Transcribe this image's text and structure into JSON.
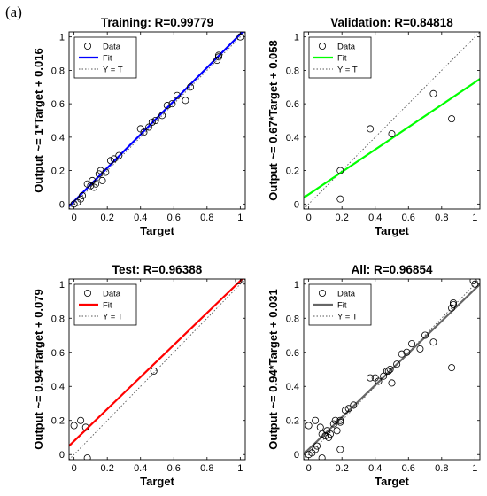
{
  "figure_label": "(a)",
  "chart_data": [
    {
      "type": "scatter",
      "title": "Training: R=0.99779",
      "xlabel": "Target",
      "ylabel": "Output ~= 1*Target + 0.016",
      "xlim": [
        -0.03,
        1.03
      ],
      "ylim": [
        -0.03,
        1.03
      ],
      "ticks": [
        0,
        0.2,
        0.4,
        0.6,
        0.8,
        1
      ],
      "tick_labels": [
        "0",
        "0.2",
        "0.4",
        "0.6",
        "0.8",
        "1"
      ],
      "fit": {
        "slope": 1.0,
        "intercept": 0.016
      },
      "fit_color": "#0000ff",
      "legend": {
        "data": "Data",
        "fit": "Fit",
        "ident": "Y = T"
      },
      "points": [
        [
          0.0,
          0.0
        ],
        [
          0.02,
          0.01
        ],
        [
          0.04,
          0.03
        ],
        [
          0.05,
          0.05
        ],
        [
          0.08,
          0.12
        ],
        [
          0.1,
          0.11
        ],
        [
          0.11,
          0.14
        ],
        [
          0.12,
          0.1
        ],
        [
          0.13,
          0.12
        ],
        [
          0.15,
          0.18
        ],
        [
          0.16,
          0.2
        ],
        [
          0.17,
          0.14
        ],
        [
          0.19,
          0.19
        ],
        [
          0.22,
          0.26
        ],
        [
          0.24,
          0.27
        ],
        [
          0.27,
          0.29
        ],
        [
          0.4,
          0.45
        ],
        [
          0.42,
          0.43
        ],
        [
          0.45,
          0.46
        ],
        [
          0.47,
          0.49
        ],
        [
          0.49,
          0.5
        ],
        [
          0.53,
          0.53
        ],
        [
          0.56,
          0.59
        ],
        [
          0.59,
          0.6
        ],
        [
          0.62,
          0.65
        ],
        [
          0.67,
          0.62
        ],
        [
          0.7,
          0.7
        ],
        [
          0.86,
          0.86
        ],
        [
          0.87,
          0.88
        ],
        [
          0.87,
          0.89
        ],
        [
          1.0,
          1.0
        ]
      ]
    },
    {
      "type": "scatter",
      "title": "Validation: R=0.84818",
      "xlabel": "Target",
      "ylabel": "Output ~= 0.67*Target + 0.058",
      "xlim": [
        -0.03,
        1.03
      ],
      "ylim": [
        -0.03,
        1.03
      ],
      "ticks": [
        0,
        0.2,
        0.4,
        0.6,
        0.8,
        1
      ],
      "tick_labels": [
        "0",
        "0.2",
        "0.4",
        "0.6",
        "0.8",
        "1"
      ],
      "fit": {
        "slope": 0.67,
        "intercept": 0.058
      },
      "fit_color": "#00ff00",
      "legend": {
        "data": "Data",
        "fit": "Fit",
        "ident": "Y = T"
      },
      "points": [
        [
          0.19,
          0.2
        ],
        [
          0.19,
          0.03
        ],
        [
          0.37,
          0.45
        ],
        [
          0.5,
          0.42
        ],
        [
          0.75,
          0.66
        ],
        [
          0.86,
          0.51
        ]
      ]
    },
    {
      "type": "scatter",
      "title": "Test: R=0.96388",
      "xlabel": "Target",
      "ylabel": "Output ~= 0.94*Target + 0.079",
      "xlim": [
        -0.03,
        1.03
      ],
      "ylim": [
        -0.03,
        1.03
      ],
      "ticks": [
        0,
        0.2,
        0.4,
        0.6,
        0.8,
        1
      ],
      "tick_labels": [
        "0",
        "0.2",
        "0.4",
        "0.6",
        "0.8",
        "1"
      ],
      "fit": {
        "slope": 0.94,
        "intercept": 0.079
      },
      "fit_color": "#ff0000",
      "legend": {
        "data": "Data",
        "fit": "Fit",
        "ident": "Y = T"
      },
      "points": [
        [
          0.0,
          0.17
        ],
        [
          0.04,
          0.2
        ],
        [
          0.07,
          0.16
        ],
        [
          0.08,
          -0.02
        ],
        [
          0.48,
          0.49
        ],
        [
          0.99,
          1.02
        ]
      ]
    },
    {
      "type": "scatter",
      "title": "All: R=0.96854",
      "xlabel": "Target",
      "ylabel": "Output ~= 0.94*Target + 0.031",
      "xlim": [
        -0.03,
        1.03
      ],
      "ylim": [
        -0.03,
        1.03
      ],
      "ticks": [
        0,
        0.2,
        0.4,
        0.6,
        0.8,
        1
      ],
      "tick_labels": [
        "0",
        "0.2",
        "0.4",
        "0.6",
        "0.8",
        "1"
      ],
      "fit": {
        "slope": 0.94,
        "intercept": 0.031
      },
      "fit_color": "#666666",
      "legend": {
        "data": "Data",
        "fit": "Fit",
        "ident": "Y = T"
      },
      "points": [
        [
          0.0,
          0.0
        ],
        [
          0.02,
          0.01
        ],
        [
          0.04,
          0.03
        ],
        [
          0.05,
          0.05
        ],
        [
          0.08,
          0.12
        ],
        [
          0.1,
          0.11
        ],
        [
          0.11,
          0.14
        ],
        [
          0.12,
          0.1
        ],
        [
          0.13,
          0.12
        ],
        [
          0.15,
          0.18
        ],
        [
          0.16,
          0.2
        ],
        [
          0.17,
          0.14
        ],
        [
          0.19,
          0.19
        ],
        [
          0.22,
          0.26
        ],
        [
          0.24,
          0.27
        ],
        [
          0.27,
          0.29
        ],
        [
          0.4,
          0.45
        ],
        [
          0.42,
          0.43
        ],
        [
          0.45,
          0.46
        ],
        [
          0.47,
          0.49
        ],
        [
          0.49,
          0.5
        ],
        [
          0.53,
          0.53
        ],
        [
          0.56,
          0.59
        ],
        [
          0.59,
          0.6
        ],
        [
          0.62,
          0.65
        ],
        [
          0.67,
          0.62
        ],
        [
          0.7,
          0.7
        ],
        [
          0.86,
          0.86
        ],
        [
          0.87,
          0.88
        ],
        [
          0.87,
          0.89
        ],
        [
          1.0,
          1.0
        ],
        [
          0.19,
          0.2
        ],
        [
          0.19,
          0.03
        ],
        [
          0.37,
          0.45
        ],
        [
          0.5,
          0.42
        ],
        [
          0.75,
          0.66
        ],
        [
          0.86,
          0.51
        ],
        [
          0.0,
          0.17
        ],
        [
          0.04,
          0.2
        ],
        [
          0.07,
          0.16
        ],
        [
          0.08,
          -0.02
        ],
        [
          0.48,
          0.49
        ],
        [
          0.99,
          1.02
        ]
      ]
    }
  ]
}
